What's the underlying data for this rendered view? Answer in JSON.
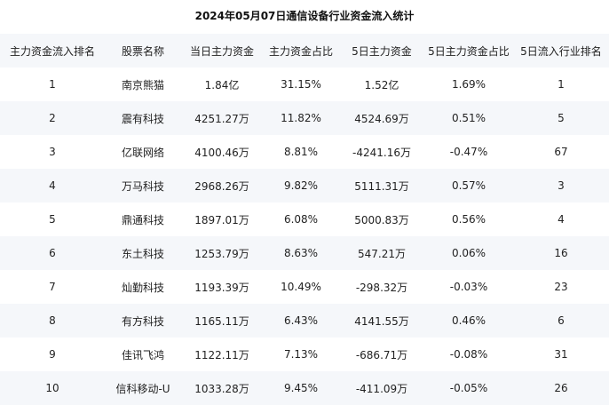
{
  "title": "2024年05月07日通信设备行业资金流入统计",
  "columns": [
    "主力资金流入排名",
    "股票名称",
    "当日主力资金",
    "主力资金占比",
    "5日主力资金",
    "5日主力资金占比",
    "5日流入行业排名"
  ],
  "rows": [
    [
      "1",
      "南京熊猫",
      "1.84亿",
      "31.15%",
      "1.52亿",
      "1.69%",
      "1"
    ],
    [
      "2",
      "震有科技",
      "4251.27万",
      "11.82%",
      "4524.69万",
      "0.51%",
      "5"
    ],
    [
      "3",
      "亿联网络",
      "4100.46万",
      "8.81%",
      "-4241.16万",
      "-0.47%",
      "67"
    ],
    [
      "4",
      "万马科技",
      "2968.26万",
      "9.82%",
      "5111.31万",
      "0.57%",
      "3"
    ],
    [
      "5",
      "鼎通科技",
      "1897.01万",
      "6.08%",
      "5000.83万",
      "0.56%",
      "4"
    ],
    [
      "6",
      "东土科技",
      "1253.79万",
      "8.63%",
      "547.21万",
      "0.06%",
      "16"
    ],
    [
      "7",
      "灿勤科技",
      "1193.39万",
      "10.49%",
      "-298.32万",
      "-0.03%",
      "23"
    ],
    [
      "8",
      "有方科技",
      "1165.11万",
      "6.43%",
      "4141.55万",
      "0.46%",
      "6"
    ],
    [
      "9",
      "佳讯飞鸿",
      "1122.11万",
      "7.13%",
      "-686.71万",
      "-0.08%",
      "31"
    ],
    [
      "10",
      "信科移动-U",
      "1033.28万",
      "9.45%",
      "-411.09万",
      "-0.05%",
      "26"
    ]
  ]
}
